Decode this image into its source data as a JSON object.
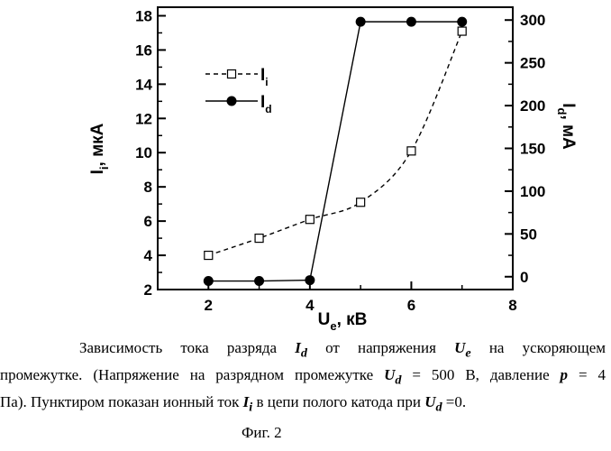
{
  "chart_data": {
    "type": "scatter",
    "x_axis": {
      "label": "U",
      "label_sub": "e",
      "label_rest": ", кВ",
      "min": 1,
      "max": 8,
      "ticks": [
        2,
        4,
        6,
        8
      ]
    },
    "y_left": {
      "label": "I",
      "label_sub": "i",
      "label_rest": ", мкА",
      "min": 2,
      "max": 18.5,
      "ticks": [
        2,
        4,
        6,
        8,
        10,
        12,
        14,
        16,
        18
      ]
    },
    "y_right": {
      "label": "I",
      "label_sub": "d",
      "label_rest": ", мА",
      "min": -15,
      "max": 315,
      "ticks": [
        0,
        50,
        100,
        150,
        200,
        250,
        300
      ]
    },
    "series": [
      {
        "name": "I",
        "name_sub": "i",
        "axis": "left",
        "style": "dashed",
        "marker": "open-square",
        "x": [
          2,
          3,
          4,
          5,
          6,
          7
        ],
        "y": [
          4.0,
          5.0,
          6.1,
          7.1,
          10.1,
          17.1
        ]
      },
      {
        "name": "I",
        "name_sub": "d",
        "axis": "right",
        "style": "solid",
        "marker": "filled-circle",
        "x": [
          2,
          3,
          4,
          5,
          6,
          7
        ],
        "y": [
          -5,
          -5,
          -4,
          298,
          298,
          298
        ]
      }
    ]
  },
  "caption": {
    "line1": {
      "t1": "Зависимость тока разряда ",
      "v1": "I",
      "v1s": "d",
      "t2": " от напряжения ",
      "v2": "U",
      "v2s": "e",
      "t3": " на ускоряющем"
    },
    "line2": {
      "t1": "промежутке. (Напряжение на разрядном промежутке ",
      "v1": "U",
      "v1s": "d",
      "t2": " = 500 В, давление ",
      "v2": "p",
      "t3": " = 4"
    },
    "line3": {
      "t1": "Па). Пунктиром показан ионный ток ",
      "v1": "I",
      "v1s": "i",
      "t2": " в цепи полого катода при ",
      "v2": "U",
      "v2s": "d",
      "t3": " =0."
    },
    "figure": "Фиг.  2"
  }
}
